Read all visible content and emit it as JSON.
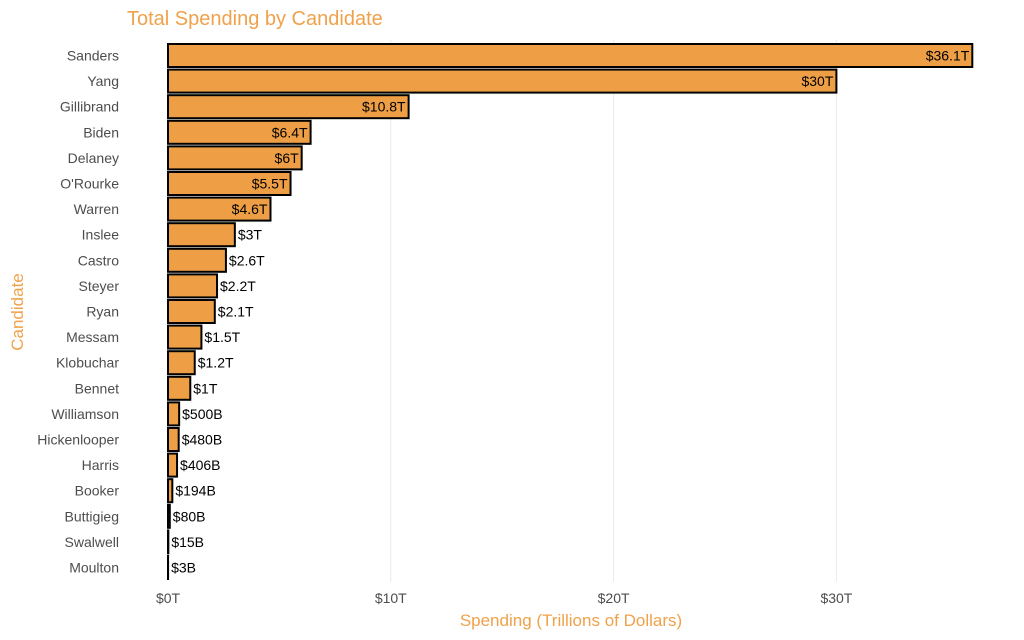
{
  "colors": {
    "accent": "#F0A14A",
    "bar_fill": "#EE9F45",
    "bar_border": "#000000"
  },
  "chart_data": {
    "type": "bar",
    "orientation": "horizontal",
    "title": "Total Spending by Candidate",
    "xlabel": "Spending (Trillions of Dollars)",
    "ylabel": "Candidate",
    "xlim": [
      0,
      37
    ],
    "grid": true,
    "x_ticks": [
      0,
      10,
      20,
      30
    ],
    "x_tick_labels": [
      "$0T",
      "$10T",
      "$20T",
      "$30T"
    ],
    "categories": [
      "Sanders",
      "Yang",
      "Gillibrand",
      "Biden",
      "Delaney",
      "O'Rourke",
      "Warren",
      "Inslee",
      "Castro",
      "Steyer",
      "Ryan",
      "Messam",
      "Klobuchar",
      "Bennet",
      "Williamson",
      "Hickenlooper",
      "Harris",
      "Booker",
      "Buttigieg",
      "Swalwell",
      "Moulton"
    ],
    "values": [
      36.1,
      30,
      10.8,
      6.4,
      6,
      5.5,
      4.6,
      3,
      2.6,
      2.2,
      2.1,
      1.5,
      1.2,
      1,
      0.5,
      0.48,
      0.406,
      0.194,
      0.08,
      0.015,
      0.003
    ],
    "data_labels": [
      "$36.1T",
      "$30T",
      "$10.8T",
      "$6.4T",
      "$6T",
      "$5.5T",
      "$4.6T",
      "$3T",
      "$2.6T",
      "$2.2T",
      "$2.1T",
      "$1.5T",
      "$1.2T",
      "$1T",
      "$500B",
      "$480B",
      "$406B",
      "$194B",
      "$80B",
      "$15B",
      "$3B"
    ]
  }
}
